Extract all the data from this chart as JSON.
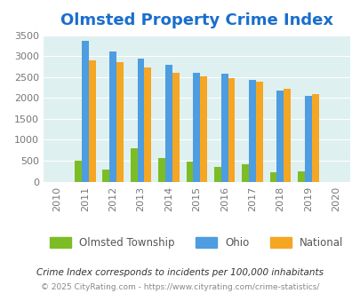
{
  "title": "Olmsted Property Crime Index",
  "years": [
    2010,
    2011,
    2012,
    2013,
    2014,
    2015,
    2016,
    2017,
    2018,
    2019,
    2020
  ],
  "bar_years": [
    2011,
    2012,
    2013,
    2014,
    2015,
    2016,
    2017,
    2018,
    2019
  ],
  "olmsted": [
    510,
    295,
    795,
    560,
    475,
    350,
    410,
    230,
    255
  ],
  "ohio": [
    3360,
    3100,
    2940,
    2800,
    2600,
    2580,
    2430,
    2180,
    2050
  ],
  "national": [
    2900,
    2850,
    2720,
    2600,
    2510,
    2480,
    2380,
    2210,
    2100
  ],
  "olmsted_color": "#7cbd25",
  "ohio_color": "#4d9de0",
  "national_color": "#f5a623",
  "bg_color": "#dff0f0",
  "plot_bg": "#dff0f0",
  "ylim": [
    0,
    3500
  ],
  "yticks": [
    0,
    500,
    1000,
    1500,
    2000,
    2500,
    3000,
    3500
  ],
  "xlim": [
    2009.5,
    2020.5
  ],
  "legend_labels": [
    "Olmsted Township",
    "Ohio",
    "National"
  ],
  "subtitle": "Crime Index corresponds to incidents per 100,000 inhabitants",
  "footer": "© 2025 CityRating.com - https://www.cityrating.com/crime-statistics/",
  "title_color": "#1a6ecc",
  "subtitle_color": "#333333",
  "footer_color": "#888888",
  "bar_width": 0.25
}
